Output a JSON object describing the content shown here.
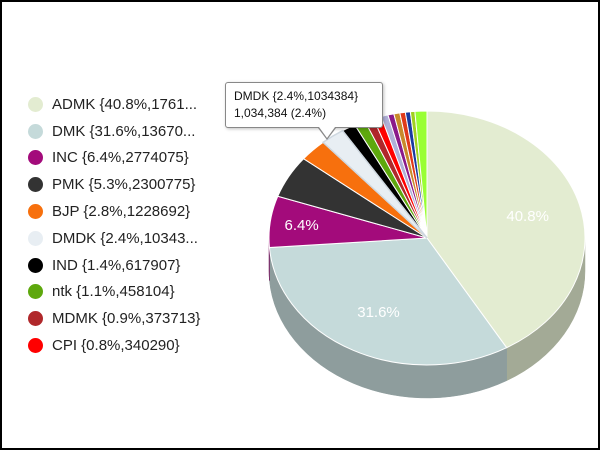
{
  "chart_data": {
    "type": "pie",
    "style": "3d",
    "series": [
      {
        "label": "ADMK {40.8%,1761...",
        "percent": 40.8,
        "color": "#e3ecd1",
        "slice_label": "40.8%"
      },
      {
        "label": "DMK {31.6%,13670...",
        "percent": 31.6,
        "color": "#c5dada",
        "slice_label": "31.6%"
      },
      {
        "label": "INC {6.4%,2774075}",
        "percent": 6.4,
        "color": "#a30b7b",
        "slice_label": "6.4%"
      },
      {
        "label": "PMK {5.3%,2300775}",
        "percent": 5.3,
        "color": "#333333",
        "slice_label": ""
      },
      {
        "label": "BJP {2.8%,1228692}",
        "percent": 2.8,
        "color": "#f7700d",
        "slice_label": ""
      },
      {
        "label": "DMDK {2.4%,10343...",
        "percent": 2.4,
        "color": "#e8eef3",
        "slice_label": ""
      },
      {
        "label": "IND {1.4%,617907}",
        "percent": 1.4,
        "color": "#000000",
        "slice_label": ""
      },
      {
        "label": "ntk {1.1%,458104}",
        "percent": 1.1,
        "color": "#5ea80d",
        "slice_label": ""
      },
      {
        "label": "MDMK {0.9%,373713}",
        "percent": 0.9,
        "color": "#b0282b",
        "slice_label": ""
      },
      {
        "label": "CPI {0.8%,340290}",
        "percent": 0.8,
        "color": "#ff0000",
        "slice_label": ""
      }
    ],
    "other_slices": [
      {
        "percent": 0.7,
        "color": "#b0b0d8"
      },
      {
        "percent": 0.6,
        "color": "#8a1a8a"
      },
      {
        "percent": 0.6,
        "color": "#c88a2a"
      },
      {
        "percent": 0.55,
        "color": "#e03a1a"
      },
      {
        "percent": 0.5,
        "color": "#1a3aa0"
      },
      {
        "percent": 0.45,
        "color": "#a0d020"
      },
      {
        "percent": 1.2,
        "color": "#99ff33"
      }
    ],
    "tooltip": {
      "title": "DMDK {2.4%,1034384}",
      "value": "1,034,384 (2.4%)"
    }
  }
}
